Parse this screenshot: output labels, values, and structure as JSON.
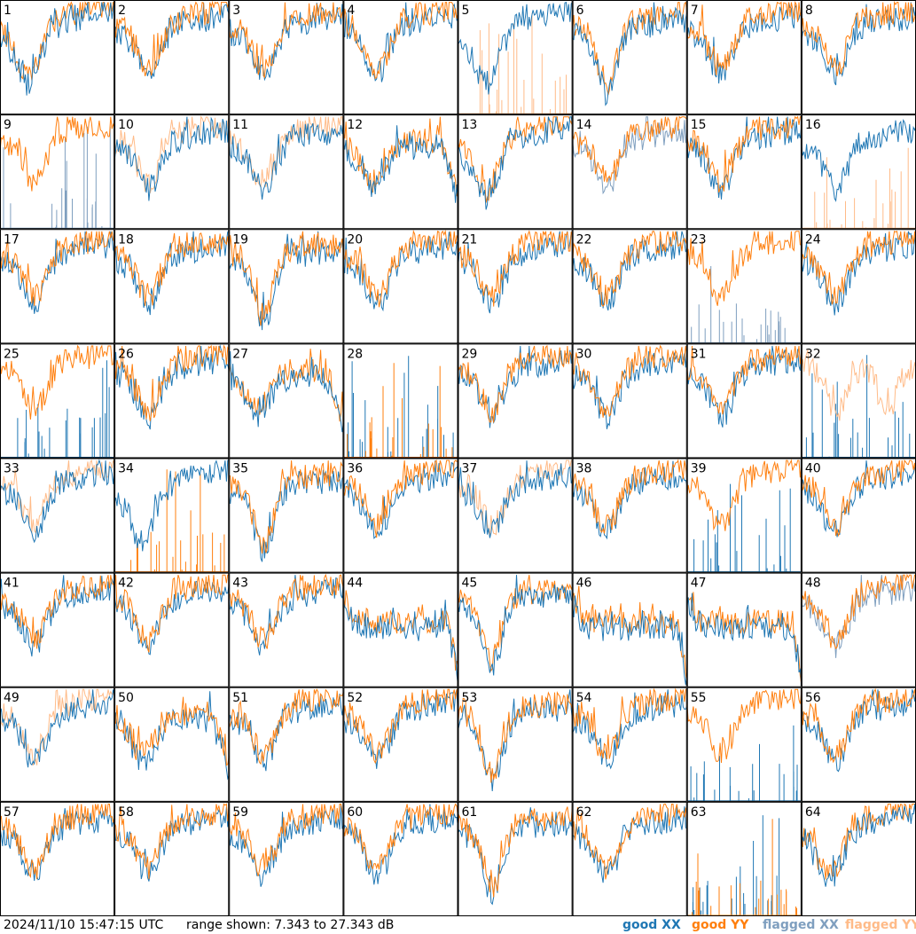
{
  "footer": {
    "timestamp": "2024/11/10 15:47:15 UTC",
    "range_text": "range shown: 7.343 to 27.343 dB"
  },
  "legend": [
    {
      "label": "good XX",
      "color": "#1f77b4"
    },
    {
      "label": "good YY",
      "color": "#ff7f0e"
    },
    {
      "label": "flagged XX",
      "color": "#7f9fbf"
    },
    {
      "label": "flagged YY",
      "color": "#ffbb88"
    }
  ],
  "chart_data": {
    "type": "line",
    "ylim": [
      7.343,
      27.343
    ],
    "grid": {
      "rows": 8,
      "cols": 8
    },
    "panels": [
      {
        "id": "1",
        "xx": "good",
        "yy": "good",
        "shape": "vbowl",
        "swap": false
      },
      {
        "id": "2",
        "xx": "good",
        "yy": "good",
        "shape": "bowl",
        "swap": true
      },
      {
        "id": "3",
        "xx": "good",
        "yy": "good",
        "shape": "bowl",
        "swap": true
      },
      {
        "id": "4",
        "xx": "good",
        "yy": "good",
        "shape": "bowl",
        "swap": true
      },
      {
        "id": "5",
        "xx": "good",
        "yy": "flagged",
        "shape": "vbowl",
        "swap": false,
        "spikes": "yy"
      },
      {
        "id": "6",
        "xx": "good",
        "yy": "good",
        "shape": "deep",
        "swap": false
      },
      {
        "id": "7",
        "xx": "good",
        "yy": "good",
        "shape": "bowl",
        "swap": true
      },
      {
        "id": "8",
        "xx": "good",
        "yy": "good",
        "shape": "bowl",
        "swap": true
      },
      {
        "id": "9",
        "xx": "flagged",
        "yy": "good",
        "shape": "bowl",
        "swap": true,
        "spikes": "xx"
      },
      {
        "id": "10",
        "xx": "good",
        "yy": "flagged",
        "shape": "bowl",
        "swap": false
      },
      {
        "id": "11",
        "xx": "good",
        "yy": "flagged",
        "shape": "bowl",
        "swap": false
      },
      {
        "id": "12",
        "xx": "good",
        "yy": "good",
        "shape": "drop",
        "swap": false
      },
      {
        "id": "13",
        "xx": "good",
        "yy": "good",
        "shape": "vbowl",
        "swap": false
      },
      {
        "id": "14",
        "xx": "flagged",
        "yy": "good",
        "shape": "bowl",
        "swap": true
      },
      {
        "id": "15",
        "xx": "good",
        "yy": "good",
        "shape": "bowl",
        "swap": true
      },
      {
        "id": "16",
        "xx": "good",
        "yy": "flagged",
        "shape": "bowl",
        "swap": false,
        "spikes": "yy"
      },
      {
        "id": "17",
        "xx": "good",
        "yy": "good",
        "shape": "bowl",
        "swap": true
      },
      {
        "id": "18",
        "xx": "good",
        "yy": "good",
        "shape": "bowl",
        "swap": true
      },
      {
        "id": "19",
        "xx": "good",
        "yy": "good",
        "shape": "deep",
        "swap": true
      },
      {
        "id": "20",
        "xx": "good",
        "yy": "good",
        "shape": "bowl",
        "swap": true
      },
      {
        "id": "21",
        "xx": "good",
        "yy": "good",
        "shape": "bowl",
        "swap": true
      },
      {
        "id": "22",
        "xx": "good",
        "yy": "good",
        "shape": "bowl",
        "swap": true
      },
      {
        "id": "23",
        "xx": "flagged",
        "yy": "good",
        "shape": "bowl",
        "swap": true,
        "spikes": "xx"
      },
      {
        "id": "24",
        "xx": "good",
        "yy": "good",
        "shape": "bowl",
        "swap": true
      },
      {
        "id": "25",
        "xx": "good",
        "yy": "good",
        "shape": "bowl",
        "swap": true,
        "spikes": "xx"
      },
      {
        "id": "26",
        "xx": "good",
        "yy": "good",
        "shape": "bowl",
        "swap": true
      },
      {
        "id": "27",
        "xx": "good",
        "yy": "good",
        "shape": "drop",
        "swap": false
      },
      {
        "id": "28",
        "xx": "good",
        "yy": "good",
        "shape": "none",
        "swap": true,
        "spikes": "yy"
      },
      {
        "id": "29",
        "xx": "good",
        "yy": "good",
        "shape": "bowl",
        "swap": true
      },
      {
        "id": "30",
        "xx": "good",
        "yy": "good",
        "shape": "bowl",
        "swap": true
      },
      {
        "id": "31",
        "xx": "good",
        "yy": "good",
        "shape": "bowl",
        "swap": true
      },
      {
        "id": "32",
        "xx": "good",
        "yy": "flagged",
        "shape": "double",
        "swap": true,
        "spikes": "xx"
      },
      {
        "id": "33",
        "xx": "good",
        "yy": "flagged",
        "shape": "bowl",
        "swap": false
      },
      {
        "id": "34",
        "xx": "good",
        "yy": "good",
        "shape": "vbowl",
        "swap": false,
        "spikes": "yy"
      },
      {
        "id": "35",
        "xx": "good",
        "yy": "good",
        "shape": "deep",
        "swap": true
      },
      {
        "id": "36",
        "xx": "good",
        "yy": "good",
        "shape": "bowl",
        "swap": true
      },
      {
        "id": "37",
        "xx": "good",
        "yy": "flagged",
        "shape": "bowl",
        "swap": false
      },
      {
        "id": "38",
        "xx": "good",
        "yy": "good",
        "shape": "bowl",
        "swap": true
      },
      {
        "id": "39",
        "xx": "good",
        "yy": "good",
        "shape": "bowl",
        "swap": true,
        "spikes": "xx"
      },
      {
        "id": "40",
        "xx": "good",
        "yy": "good",
        "shape": "bowl",
        "swap": true
      },
      {
        "id": "41",
        "xx": "good",
        "yy": "good",
        "shape": "bowl",
        "swap": true
      },
      {
        "id": "42",
        "xx": "good",
        "yy": "good",
        "shape": "bowl",
        "swap": true
      },
      {
        "id": "43",
        "xx": "good",
        "yy": "good",
        "shape": "bowl",
        "swap": true
      },
      {
        "id": "44",
        "xx": "good",
        "yy": "good",
        "shape": "flat",
        "swap": false
      },
      {
        "id": "45",
        "xx": "good",
        "yy": "good",
        "shape": "deep",
        "swap": false
      },
      {
        "id": "46",
        "xx": "good",
        "yy": "good",
        "shape": "flat",
        "swap": false
      },
      {
        "id": "47",
        "xx": "good",
        "yy": "good",
        "shape": "flat",
        "swap": false
      },
      {
        "id": "48",
        "xx": "flagged",
        "yy": "good",
        "shape": "bowl",
        "swap": true
      },
      {
        "id": "49",
        "xx": "good",
        "yy": "flagged",
        "shape": "bowl",
        "swap": false
      },
      {
        "id": "50",
        "xx": "good",
        "yy": "good",
        "shape": "drop",
        "swap": true
      },
      {
        "id": "51",
        "xx": "good",
        "yy": "good",
        "shape": "bowl",
        "swap": true
      },
      {
        "id": "52",
        "xx": "good",
        "yy": "good",
        "shape": "bowl",
        "swap": true
      },
      {
        "id": "53",
        "xx": "good",
        "yy": "good",
        "shape": "deep",
        "swap": true
      },
      {
        "id": "54",
        "xx": "good",
        "yy": "good",
        "shape": "bowl",
        "swap": true
      },
      {
        "id": "55",
        "xx": "good",
        "yy": "good",
        "shape": "bowl",
        "swap": true,
        "spikes": "xx"
      },
      {
        "id": "56",
        "xx": "good",
        "yy": "good",
        "shape": "bowl",
        "swap": true
      },
      {
        "id": "57",
        "xx": "good",
        "yy": "good",
        "shape": "bowl",
        "swap": true
      },
      {
        "id": "58",
        "xx": "good",
        "yy": "good",
        "shape": "bowl",
        "swap": true
      },
      {
        "id": "59",
        "xx": "good",
        "yy": "good",
        "shape": "bowl",
        "swap": true
      },
      {
        "id": "60",
        "xx": "good",
        "yy": "good",
        "shape": "bowl",
        "swap": true
      },
      {
        "id": "61",
        "xx": "good",
        "yy": "good",
        "shape": "deep",
        "swap": true
      },
      {
        "id": "62",
        "xx": "good",
        "yy": "good",
        "shape": "bowl",
        "swap": true
      },
      {
        "id": "63",
        "xx": "good",
        "yy": "good",
        "shape": "none",
        "swap": true,
        "spikes": "yy"
      },
      {
        "id": "64",
        "xx": "good",
        "yy": "good",
        "shape": "vbowl",
        "swap": false
      }
    ]
  }
}
